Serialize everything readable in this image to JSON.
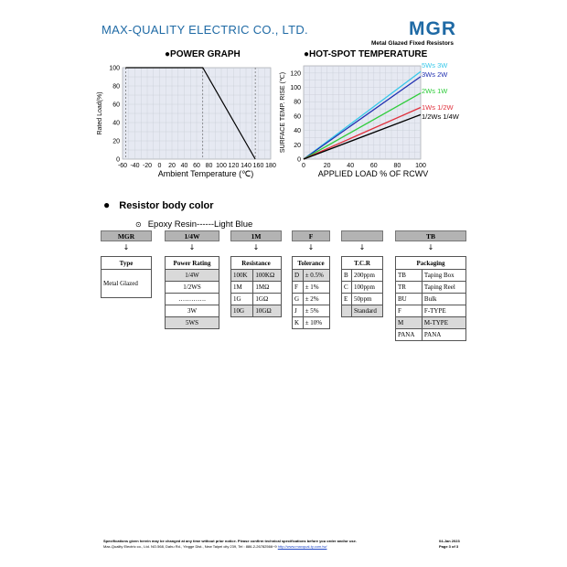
{
  "header": {
    "company": "MAX-QUALITY ELECTRIC CO., LTD.",
    "logo": "MGR",
    "subtitle": "Metal Glazed Fixed Resistors"
  },
  "chart_data": [
    {
      "type": "line",
      "title": "POWER GRAPH",
      "xlabel": "Ambient Temperature (℃)",
      "ylabel": "Rated Load(%)",
      "xlim": [
        -60,
        180
      ],
      "ylim": [
        0,
        100
      ],
      "x_ticks": [
        "-60",
        "-40",
        "-20",
        "0",
        "20",
        "40",
        "60",
        "80",
        "100",
        "120",
        "140",
        "160",
        "180"
      ],
      "y_ticks": [
        "0",
        "20",
        "40",
        "60",
        "80",
        "100"
      ],
      "grid": true,
      "series": [
        {
          "x": [
            -55,
            70,
            155
          ],
          "y": [
            100,
            100,
            0
          ]
        }
      ],
      "dashed_reference_x": [
        -55,
        70,
        155
      ]
    },
    {
      "type": "line",
      "title": "HOT-SPOT TEMPERATURE",
      "xlabel": "APPLIED LOAD % OF RCWV",
      "ylabel": "SURFACE TEMP. RISE (℃)",
      "xlim": [
        0,
        100
      ],
      "ylim": [
        0,
        130
      ],
      "x_ticks": [
        "0",
        "20",
        "40",
        "60",
        "80",
        "100"
      ],
      "y_ticks": [
        "0",
        "20",
        "40",
        "60",
        "80",
        "100",
        "120"
      ],
      "grid": true,
      "series": [
        {
          "name": "5Ws 3W",
          "x": [
            0,
            100
          ],
          "y": [
            0,
            122
          ],
          "color": "#37c8ea"
        },
        {
          "name": "3Ws 2W",
          "x": [
            0,
            100
          ],
          "y": [
            0,
            115
          ],
          "color": "#1f2fb0"
        },
        {
          "name": "2Ws 1W",
          "x": [
            0,
            100
          ],
          "y": [
            0,
            92
          ],
          "color": "#2ecc3a"
        },
        {
          "name": "1Ws 1/2W",
          "x": [
            0,
            100
          ],
          "y": [
            0,
            72
          ],
          "color": "#e0303c"
        },
        {
          "name": "1/2Ws 1/4W",
          "x": [
            0,
            100
          ],
          "y": [
            0,
            62
          ],
          "color": "#000000"
        }
      ]
    }
  ],
  "section": {
    "bullet_title": "Resistor body color",
    "resin_line": "Epoxy Resin------Light Blue"
  },
  "codes": {
    "mgr": "MGR",
    "power": "1/4W",
    "resistance": "1M",
    "tolerance": "F",
    "tcr": "",
    "packaging": "TB",
    "arrow": "↓"
  },
  "tables": {
    "type": {
      "header": "Type",
      "rows": [
        "Metal Glazed"
      ]
    },
    "power": {
      "header": "Power Rating",
      "rows": [
        "1/4W",
        "1/2WS",
        "………….",
        "3W",
        "5WS"
      ]
    },
    "resistance": {
      "header": "Resistance",
      "rows": [
        [
          "100K",
          "100KΩ"
        ],
        [
          "1M",
          "1MΩ"
        ],
        [
          "1G",
          "1GΩ"
        ],
        [
          "10G",
          "10GΩ"
        ]
      ]
    },
    "tolerance": {
      "header": "Tolerance",
      "rows": [
        [
          "D",
          "± 0.5%"
        ],
        [
          "F",
          "± 1%"
        ],
        [
          "G",
          "± 2%"
        ],
        [
          "J",
          "± 5%"
        ],
        [
          "K",
          "± 10%"
        ]
      ]
    },
    "tcr": {
      "header": "T.C.R",
      "rows": [
        [
          "B",
          "200ppm"
        ],
        [
          "C",
          "100ppm"
        ],
        [
          "E",
          "50ppm"
        ],
        [
          "",
          "Standard"
        ]
      ]
    },
    "packaging": {
      "header": "Packaging",
      "rows": [
        [
          "TB",
          "Taping Box"
        ],
        [
          "TR",
          "Taping Reel"
        ],
        [
          "BU",
          "Bulk"
        ],
        [
          "F",
          "F-TYPE"
        ],
        [
          "M",
          "M-TYPE"
        ],
        [
          "PANA",
          "PANA"
        ]
      ]
    }
  },
  "footer": {
    "line1": "Specifications given herein may be changed at any time without prior notice. Please confirm technical specifications before you order and/or use.",
    "line2": "Max-Quality Electric co., Ltd. NO.568, Dahu Rd., Yingge Dist., New Taipei city 239, Tel : 886-2-26782566~9",
    "link": "http://www.maxqual-ty.com.tw/",
    "date": "04-Jan 2023",
    "page": "Page 3 of 3"
  }
}
